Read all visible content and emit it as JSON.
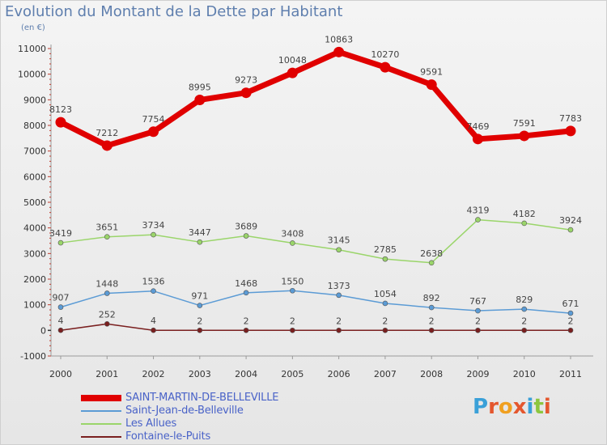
{
  "title": "Evolution du Montant de la Dette par Habitant",
  "subtitle": "(en €)",
  "logo": {
    "text": "Proxiti",
    "colors": [
      "#3aa0d8",
      "#e4572e",
      "#f0a020",
      "#e4572e",
      "#3aa0d8",
      "#8cc63f",
      "#e4572e"
    ]
  },
  "chart_data": {
    "type": "line",
    "x": [
      "2000",
      "2001",
      "2002",
      "2003",
      "2004",
      "2005",
      "2006",
      "2007",
      "2008",
      "2009",
      "2010",
      "2011"
    ],
    "ylim": [
      -1000,
      11000
    ],
    "yticks": [
      -1000,
      0,
      1000,
      2000,
      3000,
      4000,
      5000,
      6000,
      7000,
      8000,
      9000,
      10000,
      11000
    ],
    "grid": false,
    "legend": "bottom-left",
    "series": [
      {
        "name": "SAINT-MARTIN-DE-BELLEVILLE",
        "color": "#e00000",
        "thick": true,
        "values": [
          8123,
          7212,
          7754,
          8995,
          9273,
          10048,
          10863,
          10270,
          9591,
          7469,
          7591,
          7783
        ],
        "labels": [
          "8123",
          "7212",
          "7754",
          "8995",
          "9273",
          "10048",
          "10863",
          "10270",
          "9591",
          "7469",
          "7591",
          "7783"
        ]
      },
      {
        "name": "Saint-Jean-de-Belleville",
        "color": "#5b9bd5",
        "thick": false,
        "values": [
          907,
          1448,
          1536,
          971,
          1468,
          1550,
          1373,
          1054,
          892,
          767,
          829,
          671
        ],
        "labels": [
          "907",
          "1448",
          "1536",
          "971",
          "1468",
          "1550",
          "1373",
          "1054",
          "892",
          "767",
          "829",
          "671"
        ]
      },
      {
        "name": "Les Allues",
        "color": "#9ad56a",
        "thick": false,
        "values": [
          3419,
          3651,
          3734,
          3447,
          3689,
          3408,
          3145,
          2785,
          2638,
          4319,
          4182,
          3924
        ],
        "labels": [
          "3419",
          "3651",
          "3734",
          "3447",
          "3689",
          "3408",
          "3145",
          "2785",
          "2638",
          "4319",
          "4182",
          "3924"
        ]
      },
      {
        "name": "Fontaine-le-Puits",
        "color": "#7a1f1f",
        "thick": false,
        "values": [
          4,
          252,
          4,
          2,
          2,
          2,
          2,
          2,
          2,
          2,
          2,
          2
        ],
        "labels": [
          "4",
          "252",
          "4",
          "2",
          "2",
          "2",
          "2",
          "2",
          "2",
          "2",
          "2",
          "2"
        ]
      }
    ]
  }
}
